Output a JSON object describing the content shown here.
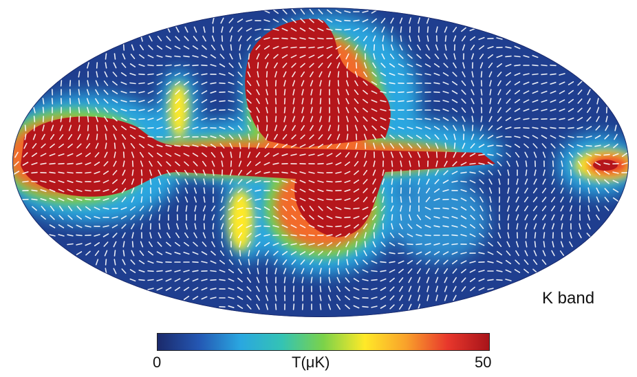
{
  "band_label": "K band",
  "colorbar": {
    "min_label": "0",
    "max_label": "50",
    "title": "T(μK)",
    "colors": [
      "#1b2a6b",
      "#2457b3",
      "#2aa7e0",
      "#34c3b4",
      "#7bd24a",
      "#ffe928",
      "#f9a12b",
      "#e8372c",
      "#a8141a"
    ]
  },
  "map": {
    "projection": "Mollweide",
    "background_color": "#ffffff",
    "vector_color": "#ffffff"
  }
}
